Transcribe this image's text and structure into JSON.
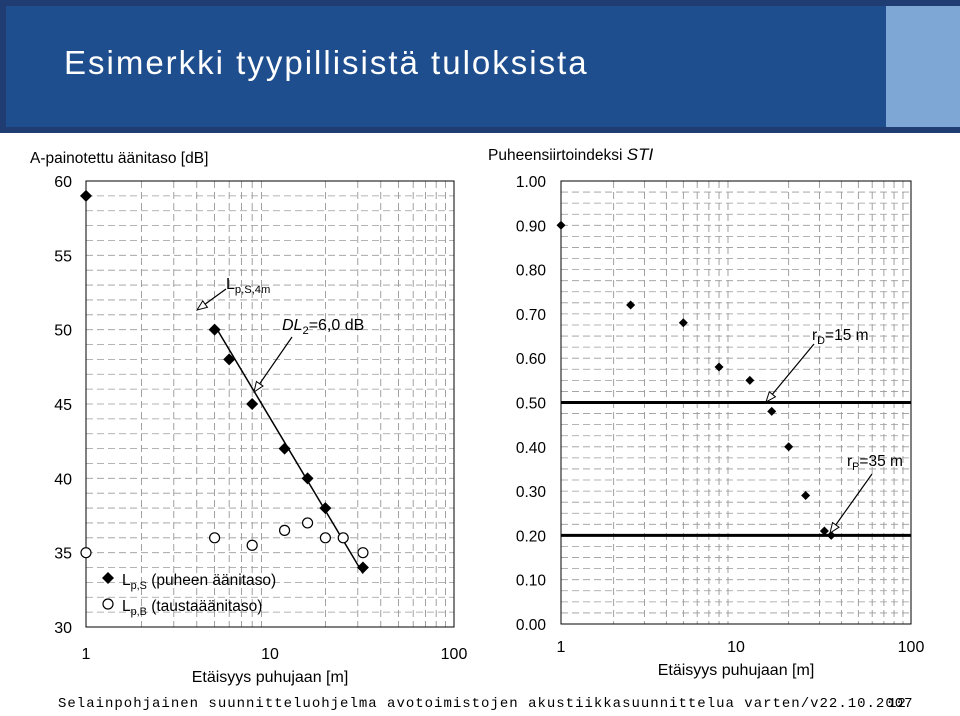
{
  "slide": {
    "title": "Esimerkki tyypillisistä tuloksista",
    "footer": "Selainpohjainen suunnitteluohjelma avotoimistojen akustiikkasuunnittelua varten/v22.10.2007",
    "page_number": "12"
  },
  "chart_data": [
    {
      "type": "scatter",
      "ylabel": "A-painotettu äänitaso [dB]",
      "xlabel": "Etäisyys puhujaan [m]",
      "x_scale": "log",
      "xlim": [
        1,
        100
      ],
      "ylim": [
        30,
        60
      ],
      "x_ticks": [
        "1",
        "10",
        "100"
      ],
      "y_ticks": [
        "30",
        "35",
        "40",
        "45",
        "50",
        "55",
        "60"
      ],
      "series": [
        {
          "name": "L p,S (puheen äänitaso)",
          "name_main": "L",
          "name_sub": "p,S",
          "name_rest": " (puheen äänitaso)",
          "marker": "diamond",
          "points": [
            [
              1,
              59
            ],
            [
              5,
              50
            ],
            [
              6,
              48
            ],
            [
              8,
              45
            ],
            [
              12,
              42
            ],
            [
              16,
              40
            ],
            [
              20,
              38
            ],
            [
              32,
              34
            ]
          ]
        },
        {
          "name": "L p,B (taustaäänitaso)",
          "name_main": "L",
          "name_sub": "p,B",
          "name_rest": " (taustaäänitaso)",
          "marker": "circle",
          "points": [
            [
              1,
              35
            ],
            [
              5,
              36
            ],
            [
              8,
              35.5
            ],
            [
              12,
              36.5
            ],
            [
              16,
              37
            ],
            [
              20,
              36
            ],
            [
              25,
              36
            ],
            [
              32,
              35
            ]
          ]
        }
      ],
      "annotations": [
        {
          "text_main": "L",
          "text_sub": "p,S,4m"
        },
        {
          "text_main": "DL",
          "text_sub": "2",
          "text_rest": "=6,0 dB"
        }
      ]
    },
    {
      "type": "scatter",
      "ylabel_main": "Puheensiirtoindeksi ",
      "ylabel_italic": "STI",
      "xlabel": "Etäisyys puhujaan [m]",
      "x_scale": "log",
      "xlim": [
        1,
        100
      ],
      "ylim": [
        0,
        1
      ],
      "x_ticks": [
        "1",
        "10",
        "100"
      ],
      "y_ticks": [
        "0.00",
        "0.10",
        "0.20",
        "0.30",
        "0.40",
        "0.50",
        "0.60",
        "0.70",
        "0.80",
        "0.90",
        "1.00"
      ],
      "series": [
        {
          "marker": "diamond",
          "points": [
            [
              1,
              0.9
            ],
            [
              2.5,
              0.72
            ],
            [
              5,
              0.68
            ],
            [
              8,
              0.58
            ],
            [
              12,
              0.55
            ],
            [
              16,
              0.48
            ],
            [
              20,
              0.4
            ],
            [
              25,
              0.29
            ],
            [
              32,
              0.21
            ],
            [
              35,
              0.2
            ]
          ]
        }
      ],
      "reference_lines": [
        0.5,
        0.2
      ],
      "annotations": [
        {
          "text_main": "r",
          "text_sub": "D",
          "text_rest": "=15 m"
        },
        {
          "text_main": "r",
          "text_sub": "P",
          "text_rest": "=35 m"
        }
      ]
    }
  ]
}
